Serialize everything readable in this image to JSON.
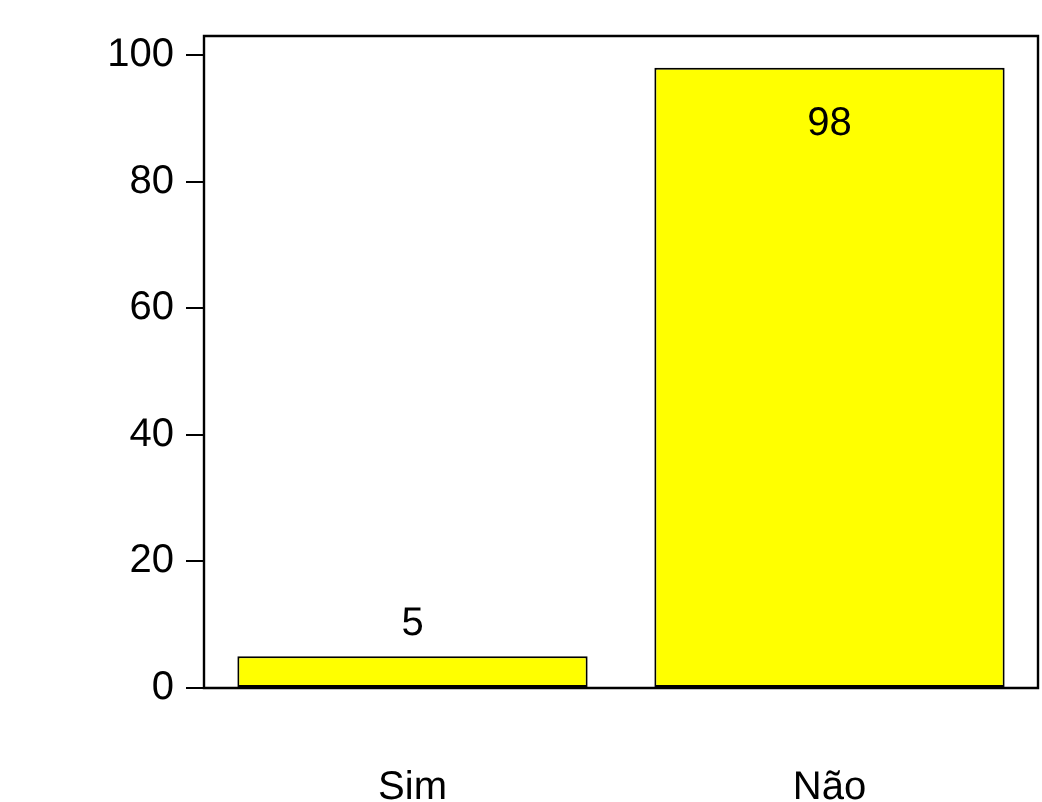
{
  "chart_data": {
    "type": "bar",
    "categories": [
      "Sim",
      "Não"
    ],
    "values": [
      5,
      98
    ],
    "color": "#ffff00",
    "ylim": [
      0,
      103
    ],
    "yticks": [
      0,
      20,
      40,
      60,
      80,
      100
    ],
    "grid": false,
    "legend": false,
    "data_labels": true
  }
}
